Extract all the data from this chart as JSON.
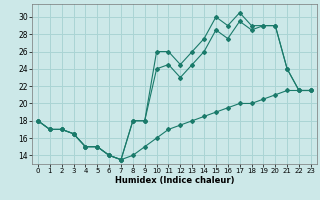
{
  "xlabel": "Humidex (Indice chaleur)",
  "background_color": "#cce8e8",
  "grid_color": "#aad4d4",
  "line_color": "#1a7a6a",
  "xlim": [
    -0.5,
    23.5
  ],
  "ylim": [
    13.0,
    31.5
  ],
  "xticks": [
    0,
    1,
    2,
    3,
    4,
    5,
    6,
    7,
    8,
    9,
    10,
    11,
    12,
    13,
    14,
    15,
    16,
    17,
    18,
    19,
    20,
    21,
    22,
    23
  ],
  "yticks": [
    14,
    16,
    18,
    20,
    22,
    24,
    26,
    28,
    30
  ],
  "line1_x": [
    0,
    1,
    2,
    3,
    4,
    5,
    6,
    7,
    8,
    9,
    10,
    11,
    12,
    13,
    14,
    15,
    16,
    17,
    18,
    19,
    20,
    21,
    22,
    23
  ],
  "line1_y": [
    18,
    17,
    17,
    16.5,
    15,
    15,
    14,
    13.5,
    18,
    18,
    26,
    26,
    24.5,
    26,
    27.5,
    30,
    29,
    30.5,
    29,
    29,
    29,
    24,
    21.5,
    21.5
  ],
  "line2_x": [
    0,
    1,
    2,
    3,
    4,
    5,
    6,
    7,
    8,
    9,
    10,
    11,
    12,
    13,
    14,
    15,
    16,
    17,
    18,
    19,
    20,
    21,
    22,
    23
  ],
  "line2_y": [
    18,
    17,
    17,
    16.5,
    15,
    15,
    14,
    13.5,
    18,
    18,
    24,
    24.5,
    23,
    24.5,
    26,
    28.5,
    27.5,
    29.5,
    28.5,
    29,
    29,
    24,
    21.5,
    21.5
  ],
  "line3_x": [
    0,
    1,
    2,
    3,
    4,
    5,
    6,
    7,
    8,
    9,
    10,
    11,
    12,
    13,
    14,
    15,
    16,
    17,
    18,
    19,
    20,
    21,
    22,
    23
  ],
  "line3_y": [
    18,
    17,
    17,
    16.5,
    15,
    15,
    14,
    13.5,
    14,
    15,
    16,
    17,
    17.5,
    18,
    18.5,
    19,
    19.5,
    20,
    20,
    20.5,
    21,
    21.5,
    21.5,
    21.5
  ]
}
